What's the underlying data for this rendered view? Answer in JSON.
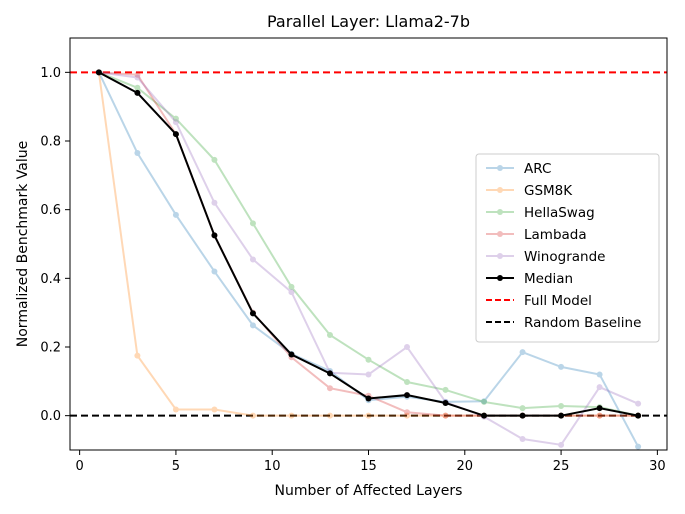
{
  "chart_data": {
    "type": "line",
    "title": "Parallel Layer: Llama2-7b",
    "xlabel": "Number of Affected Layers",
    "ylabel": "Normalized Benchmark Value",
    "xlim": [
      -0.5,
      30.5
    ],
    "ylim": [
      -0.1,
      1.1
    ],
    "xticks": [
      0,
      5,
      10,
      15,
      20,
      25,
      30
    ],
    "yticks": [
      0.0,
      0.2,
      0.4,
      0.6,
      0.8,
      1.0
    ],
    "xtick_labels": [
      "0",
      "5",
      "10",
      "15",
      "20",
      "25",
      "30"
    ],
    "ytick_labels": [
      "0.0",
      "0.2",
      "0.4",
      "0.6",
      "0.8",
      "1.0"
    ],
    "grid": false,
    "legend_position": "center-right",
    "x": [
      1,
      3,
      5,
      7,
      9,
      11,
      13,
      15,
      17,
      19,
      21,
      23,
      25,
      27,
      29
    ],
    "series": [
      {
        "name": "ARC",
        "color": "#1f77b4",
        "alpha": 0.3,
        "values": [
          1.0,
          0.765,
          0.585,
          0.42,
          0.263,
          0.18,
          0.13,
          0.045,
          0.055,
          0.04,
          0.042,
          0.185,
          0.142,
          0.12,
          -0.09
        ]
      },
      {
        "name": "GSM8K",
        "color": "#ff7f0e",
        "alpha": 0.3,
        "values": [
          1.0,
          0.175,
          0.018,
          0.018,
          0.0,
          0.0,
          0.0,
          0.0,
          0.0,
          0.0,
          0.0,
          0.0,
          0.0,
          0.0,
          0.0
        ]
      },
      {
        "name": "HellaSwag",
        "color": "#2ca02c",
        "alpha": 0.3,
        "values": [
          1.0,
          0.955,
          0.865,
          0.745,
          0.56,
          0.375,
          0.235,
          0.163,
          0.098,
          0.075,
          0.04,
          0.022,
          0.028,
          0.025,
          0.0
        ]
      },
      {
        "name": "Lambada",
        "color": "#d62728",
        "alpha": 0.3,
        "values": [
          1.0,
          0.993,
          0.82,
          0.525,
          0.3,
          0.17,
          0.08,
          0.058,
          0.01,
          0.0,
          0.0,
          0.0,
          0.0,
          0.0,
          0.0
        ]
      },
      {
        "name": "Winogrande",
        "color": "#9467bd",
        "alpha": 0.3,
        "values": [
          1.0,
          0.985,
          0.855,
          0.62,
          0.455,
          0.36,
          0.125,
          0.12,
          0.2,
          0.04,
          -0.003,
          -0.068,
          -0.085,
          0.083,
          0.035
        ]
      },
      {
        "name": "Median",
        "color": "#000000",
        "alpha": 1.0,
        "values": [
          1.0,
          0.94,
          0.82,
          0.525,
          0.298,
          0.178,
          0.123,
          0.05,
          0.06,
          0.037,
          0.0,
          0.0,
          0.0,
          0.022,
          0.0
        ]
      }
    ],
    "reference_lines": [
      {
        "name": "Full Model",
        "y": 1.0,
        "color": "#ff0000",
        "style": "dashed"
      },
      {
        "name": "Random Baseline",
        "y": 0.0,
        "color": "#000000",
        "style": "dashed"
      }
    ]
  }
}
